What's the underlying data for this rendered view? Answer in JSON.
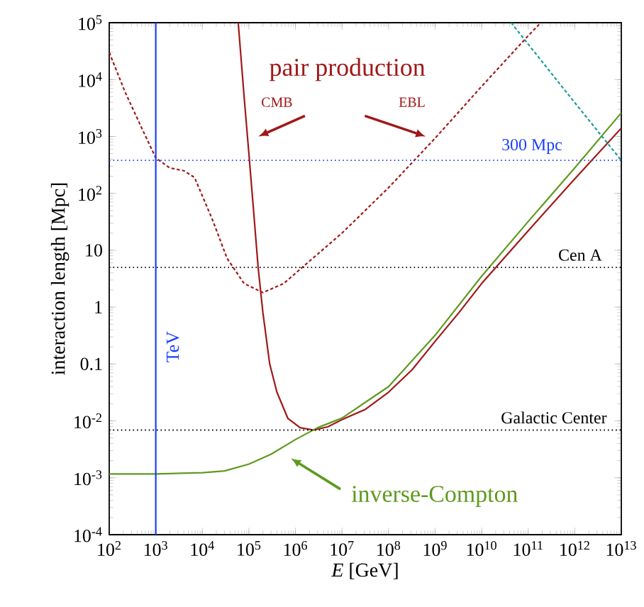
{
  "chart_data": {
    "type": "line",
    "xlabel": "*E* [GeV]",
    "ylabel": "interaction length [Mpc]",
    "annotations": [
      "pair production"
    ],
    "log": "xy",
    "grid": false,
    "xlim": [
      100,
      10000000000000.0
    ],
    "ylim": [
      0.0001,
      100000
    ],
    "xticks": [
      {
        "value": 100.0,
        "label": "10$^{2}$"
      },
      {
        "value": 1000.0,
        "label": "10$^{3}$"
      },
      {
        "value": 10000.0,
        "label": "10$^{4}$"
      },
      {
        "value": 100000.0,
        "label": "10$^{5}$"
      },
      {
        "value": 1000000.0,
        "label": "10$^{6}$"
      },
      {
        "value": 10000000.0,
        "label": "10$^{7}$"
      },
      {
        "value": 100000000.0,
        "label": "10$^{8}$"
      },
      {
        "value": 1000000000.0,
        "label": "10$^{9}$"
      },
      {
        "value": 10000000000.0,
        "label": "10$^{10}$"
      },
      {
        "value": 100000000000.0,
        "label": "10$^{11}$"
      },
      {
        "value": 1000000000000.0,
        "label": "10$^{12}$"
      },
      {
        "value": 10000000000000.0,
        "label": "10$^{13}$"
      }
    ],
    "yticks": [
      {
        "value": 0.0001,
        "label": "10$^{-4}$"
      },
      {
        "value": 0.001,
        "label": "10$^{-3}$"
      },
      {
        "value": 0.01,
        "label": "10$^{-2}$"
      },
      0.1,
      1,
      10,
      {
        "value": 100,
        "label": "10$^{2}$"
      },
      {
        "value": 1000,
        "label": "10$^{3}$"
      },
      {
        "value": 10000,
        "label": "10$^{4}$"
      },
      {
        "value": 100000,
        "label": "10$^{5}$"
      }
    ],
    "ref_lines": [
      {
        "axis": "x",
        "value": 1000,
        "label": "TeV",
        "color": "#1a3fff",
        "line_style": "solid"
      },
      {
        "axis": "y",
        "value": 380,
        "label": "300 Mpc",
        "color": "#1a3fff",
        "line_style": "dotted"
      },
      {
        "axis": "y",
        "value": 5,
        "label": "Cen A",
        "color": "#000000",
        "line_style": "dotted"
      },
      {
        "axis": "y",
        "value": 0.0069,
        "label": "Galactic Center",
        "color": "#000000",
        "line_style": "dotted"
      }
    ],
    "series": [
      {
        "name": "CMB",
        "color": "#a01818",
        "line_style": "solid",
        "x": [
          59000.0,
          79000.0,
          100000.0,
          126000.0,
          158000.0,
          200000.0,
          280000.0,
          400000.0,
          690000.0,
          1260000.0,
          2500000.0,
          5000000.0,
          10000000.0,
          32000000.0,
          100000000.0,
          320000000.0,
          1000000000.0,
          3200000000.0,
          10000000000.0,
          100000000000.0,
          1000000000000.0,
          10000000000000.0
        ],
        "values": [
          100000,
          5000,
          500,
          50,
          5,
          0.8,
          0.1,
          0.032,
          0.011,
          0.0076,
          0.0069,
          0.0079,
          0.0105,
          0.016,
          0.032,
          0.079,
          0.25,
          0.79,
          2.6,
          22,
          180,
          1400
        ]
      },
      {
        "name": "EBL",
        "color": "#a01818",
        "line_style": "dashed",
        "x": [
          100,
          220,
          500,
          1000,
          2000,
          4000,
          6800,
          16600,
          34000,
          79000,
          200000,
          560000,
          2300000,
          10000000.0,
          100000000.0,
          1000000000.0,
          10000000000.0,
          100000000000.0,
          186000000000.0
        ],
        "values": [
          30000,
          6000,
          1400,
          420,
          280,
          250,
          190,
          34,
          7.2,
          2.6,
          1.8,
          2.6,
          7.1,
          20,
          126,
          930,
          7600,
          59000,
          100000
        ]
      },
      {
        "name": "inverse-Compton",
        "color": "#5e9a1e",
        "line_style": "solid",
        "x": [
          100,
          1000,
          10000,
          30000,
          100000,
          300000,
          1000000.0,
          3000000.0,
          10000000.0,
          100000000.0,
          1000000000.0,
          10000000000.0,
          100000000000.0,
          1000000000000.0,
          10000000000000.0
        ],
        "values": [
          0.00117,
          0.00117,
          0.00123,
          0.00132,
          0.00174,
          0.0026,
          0.0047,
          0.0076,
          0.0112,
          0.04,
          0.32,
          3.5,
          32,
          280,
          2600
        ]
      },
      {
        "color": "#1a9a9a",
        "line_style": "dashed",
        "x": [
          43000000000.0,
          630000000000.0,
          10000000000000.0
        ],
        "values": [
          100000,
          6300,
          380
        ]
      }
    ]
  }
}
